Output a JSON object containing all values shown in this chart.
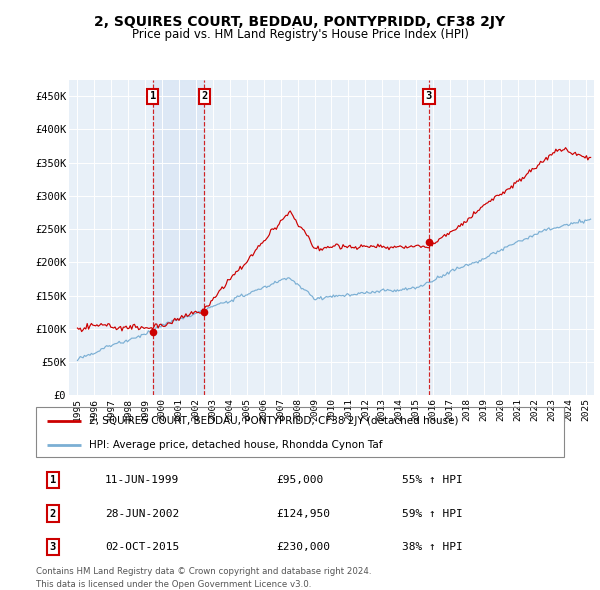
{
  "title": "2, SQUIRES COURT, BEDDAU, PONTYPRIDD, CF38 2JY",
  "subtitle": "Price paid vs. HM Land Registry's House Price Index (HPI)",
  "legend_line1": "2, SQUIRES COURT, BEDDAU, PONTYPRIDD, CF38 2JY (detached house)",
  "legend_line2": "HPI: Average price, detached house, Rhondda Cynon Taf",
  "footer1": "Contains HM Land Registry data © Crown copyright and database right 2024.",
  "footer2": "This data is licensed under the Open Government Licence v3.0.",
  "ylabel_ticks": [
    "£0",
    "£50K",
    "£100K",
    "£150K",
    "£200K",
    "£250K",
    "£300K",
    "£350K",
    "£400K",
    "£450K"
  ],
  "ytick_values": [
    0,
    50000,
    100000,
    150000,
    200000,
    250000,
    300000,
    350000,
    400000,
    450000
  ],
  "xlim": [
    1994.5,
    2025.5
  ],
  "ylim": [
    0,
    475000
  ],
  "sale_color": "#cc0000",
  "hpi_color": "#7bafd4",
  "shade_color": "#dce8f5",
  "transactions": [
    {
      "label": "1",
      "date_str": "11-JUN-1999",
      "price": 95000,
      "pct": "55%",
      "year": 1999.44
    },
    {
      "label": "2",
      "date_str": "28-JUN-2002",
      "price": 124950,
      "pct": "59%",
      "year": 2002.49
    },
    {
      "label": "3",
      "date_str": "02-OCT-2015",
      "price": 230000,
      "pct": "38%",
      "year": 2015.75
    }
  ],
  "background_color": "#ffffff",
  "plot_bg_color": "#e8f0f8"
}
